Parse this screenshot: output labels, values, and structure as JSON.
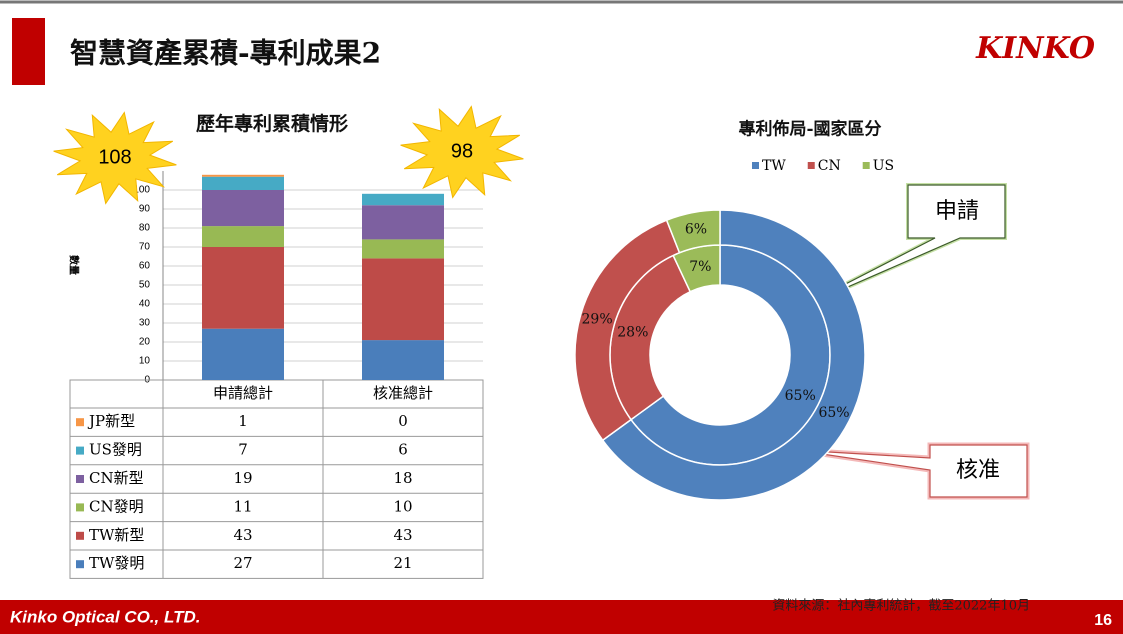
{
  "header": {
    "title": "智慧資產累積-專利成果2",
    "logo": "KINKO"
  },
  "chart_data": [
    {
      "type": "bar",
      "stacked": true,
      "title": "歷年專利累積情形",
      "y_label": "數量",
      "categories": [
        "申請總計",
        "核准總計"
      ],
      "series": [
        {
          "name": "TW發明",
          "color": "#4a7ebb",
          "values": [
            27,
            21
          ]
        },
        {
          "name": "TW新型",
          "color": "#be4b48",
          "values": [
            43,
            43
          ]
        },
        {
          "name": "CN發明",
          "color": "#98b954",
          "values": [
            11,
            10
          ]
        },
        {
          "name": "CN新型",
          "color": "#7d60a0",
          "values": [
            19,
            18
          ]
        },
        {
          "name": "US發明",
          "color": "#46aac5",
          "values": [
            7,
            6
          ]
        },
        {
          "name": "JP新型",
          "color": "#f79646",
          "values": [
            1,
            0
          ]
        }
      ],
      "totals": [
        108,
        98
      ],
      "ylim": [
        0,
        110
      ],
      "yticks": [
        0,
        10,
        20,
        30,
        40,
        50,
        60,
        70,
        80,
        90,
        100
      ],
      "grid": true
    },
    {
      "type": "donut",
      "title": "專利佈局-國家區分",
      "categories": [
        "TW",
        "CN",
        "US"
      ],
      "colors": [
        "#4f81bd",
        "#c0504d",
        "#9bbb59"
      ],
      "series": [
        {
          "name": "申請",
          "values": [
            65,
            28,
            7
          ],
          "value_labels": [
            "65%",
            "28%",
            "7%"
          ]
        },
        {
          "name": "核准",
          "values": [
            65,
            29,
            6
          ],
          "value_labels": [
            "65%",
            "29%",
            "6%"
          ]
        }
      ]
    }
  ],
  "footer": {
    "company": "Kinko Optical CO., LTD.",
    "source": "資料來源：社內專利統計，截至2022年10月",
    "page": 16
  }
}
